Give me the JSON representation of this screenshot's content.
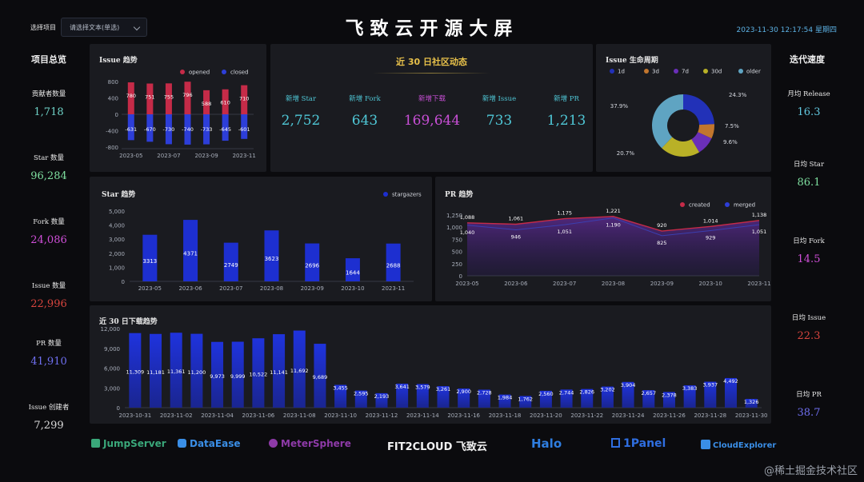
{
  "header": {
    "project_label": "选择项目",
    "select_placeholder": "请选择文本(单选)",
    "title": "飞致云开源大屏",
    "datetime": "2023-11-30 12:17:54 星期四"
  },
  "overview": {
    "title": "项目总览",
    "items": [
      {
        "label": "贡献者数量",
        "value": "1,718",
        "color": "#6fd3c8"
      },
      {
        "label": "Star 数量",
        "value": "96,284",
        "color": "#7fe0a0"
      },
      {
        "label": "Fork 数量",
        "value": "24,086",
        "color": "#d04fd9"
      },
      {
        "label": "Issue 数量",
        "value": "22,996",
        "color": "#d8453e"
      },
      {
        "label": "PR 数量",
        "value": "41,910",
        "color": "#6f6ff0"
      },
      {
        "label": "Issue 创建者",
        "value": "7,299",
        "color": "#d9d9d9"
      }
    ]
  },
  "speed": {
    "title": "迭代速度",
    "items": [
      {
        "label": "月均 Release",
        "value": "16.3",
        "color": "#62c8e0"
      },
      {
        "label": "日均 Star",
        "value": "86.1",
        "color": "#7fe0a0"
      },
      {
        "label": "日均 Fork",
        "value": "14.5",
        "color": "#d04fd9"
      },
      {
        "label": "日均 Issue",
        "value": "22.3",
        "color": "#d8453e"
      },
      {
        "label": "日均 PR",
        "value": "38.7",
        "color": "#6f6ff0"
      }
    ]
  },
  "community": {
    "title": "近 30 日社区动态",
    "items": [
      {
        "label": "新增 Star",
        "value": "2,752",
        "color": "#4fc7d6"
      },
      {
        "label": "新增 Fork",
        "value": "643",
        "color": "#4fc7d6"
      },
      {
        "label": "新增下载",
        "value": "169,644",
        "color": "#c84fd6"
      },
      {
        "label": "新增 Issue",
        "value": "733",
        "color": "#4fc7d6"
      },
      {
        "label": "新增 PR",
        "value": "1,213",
        "color": "#4fc7d6"
      }
    ]
  },
  "logos": [
    "JumpServer",
    "DataEase",
    "MeterSphere",
    "FIT2CLOUD 飞致云",
    "Halo",
    "1Panel",
    "CloudExplorer"
  ],
  "watermark": "@稀土掘金技术社区",
  "chart_data": [
    {
      "id": "issue_trend",
      "type": "bar",
      "title": "Issue 趋势",
      "categories": [
        "2023-05",
        "2023-06",
        "2023-07",
        "2023-08",
        "2023-09",
        "2023-10",
        "2023-11"
      ],
      "x_tick_labels": [
        "2023-05",
        "2023-07",
        "2023-09",
        "2023-11"
      ],
      "series": [
        {
          "name": "opened",
          "color": "#c52b48",
          "values": [
            780,
            751,
            755,
            796,
            588,
            610,
            710
          ]
        },
        {
          "name": "closed",
          "color": "#2d3ed8",
          "values": [
            -631,
            -670,
            -730,
            -740,
            -733,
            -645,
            -601
          ]
        }
      ],
      "ylim": [
        -800,
        800
      ],
      "yticks": [
        800,
        400,
        0,
        -400,
        -800
      ],
      "legend": "top-right"
    },
    {
      "id": "issue_lifecycle",
      "type": "pie",
      "title": "Issue 生命周期",
      "labels": [
        "1d",
        "3d",
        "7d",
        "30d",
        "older"
      ],
      "values": [
        24.3,
        7.5,
        9.6,
        20.7,
        37.9
      ],
      "colors": [
        "#2231b8",
        "#c2762e",
        "#6a2fb8",
        "#b9b127",
        "#5fa4c2"
      ],
      "value_labels": [
        "24.3%",
        "7.5%",
        "9.6%",
        "20.7%",
        "37.9%"
      ],
      "legend": "top"
    },
    {
      "id": "star_trend",
      "type": "bar",
      "title": "Star 趋势",
      "categories": [
        "2023-05",
        "2023-06",
        "2023-07",
        "2023-08",
        "2023-09",
        "2023-10",
        "2023-11"
      ],
      "series": [
        {
          "name": "stargazers",
          "color": "#1d2fd0",
          "values": [
            3313,
            4371,
            2749,
            3623,
            2696,
            1644,
            2688
          ]
        }
      ],
      "ylim": [
        0,
        5000
      ],
      "yticks": [
        "5,000",
        "4,000",
        "3,000",
        "2,000",
        "1,000",
        "0"
      ],
      "legend": "top-right"
    },
    {
      "id": "pr_trend",
      "type": "area",
      "title": "PR 趋势",
      "categories": [
        "2023-05",
        "2023-06",
        "2023-07",
        "2023-08",
        "2023-09",
        "2023-10",
        "2023-11"
      ],
      "series": [
        {
          "name": "created",
          "color": "#c52b48",
          "values": [
            1088,
            1061,
            1175,
            1221,
            920,
            1014,
            1138
          ]
        },
        {
          "name": "merged",
          "color": "#2d3ed8",
          "values": [
            1040,
            946,
            1051,
            1190,
            825,
            929,
            1051
          ]
        }
      ],
      "ylim": [
        0,
        1250
      ],
      "yticks": [
        "1,250",
        "1,000",
        "750",
        "500",
        "250",
        "0"
      ],
      "legend": "top-right"
    },
    {
      "id": "download_trend",
      "type": "bar",
      "title": "近 30 日下载趋势",
      "categories": [
        "2023-10-31",
        "2023-11-01",
        "2023-11-02",
        "2023-11-03",
        "2023-11-04",
        "2023-11-05",
        "2023-11-06",
        "2023-11-07",
        "2023-11-08",
        "2023-11-09",
        "2023-11-10",
        "2023-11-11",
        "2023-11-12",
        "2023-11-13",
        "2023-11-14",
        "2023-11-15",
        "2023-11-16",
        "2023-11-17",
        "2023-11-18",
        "2023-11-19",
        "2023-11-20",
        "2023-11-21",
        "2023-11-22",
        "2023-11-23",
        "2023-11-24",
        "2023-11-25",
        "2023-11-26",
        "2023-11-27",
        "2023-11-28",
        "2023-11-29",
        "2023-11-30"
      ],
      "x_tick_labels": [
        "2023-10-31",
        "2023-11-02",
        "2023-11-04",
        "2023-11-06",
        "2023-11-08",
        "2023-11-10",
        "2023-11-12",
        "2023-11-14",
        "2023-11-16",
        "2023-11-18",
        "2023-11-20",
        "2023-11-22",
        "2023-11-24",
        "2023-11-26",
        "2023-11-28",
        "2023-11-30"
      ],
      "series": [
        {
          "name": "downloads",
          "color": "#1d2fd0",
          "values": [
            11309,
            11181,
            11361,
            11200,
            9973,
            9999,
            10522,
            11141,
            11692,
            9689,
            3455,
            2595,
            2193,
            3641,
            3579,
            3261,
            2900,
            2728,
            1984,
            1762,
            2560,
            2744,
            2826,
            3202,
            3904,
            2657,
            2378,
            3383,
            3937,
            4492,
            1326
          ]
        }
      ],
      "ylim": [
        0,
        12000
      ],
      "yticks": [
        "12,000",
        "9,000",
        "6,000",
        "3,000",
        "0"
      ]
    }
  ]
}
